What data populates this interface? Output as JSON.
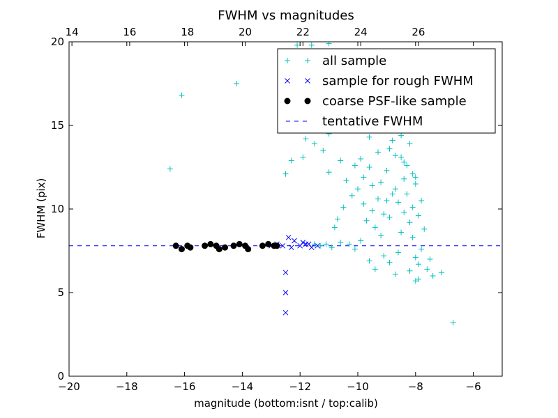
{
  "chart_data": {
    "type": "scatter",
    "title": "FWHM vs magnitudes",
    "xlabel": "magnitude (bottom:isnt / top:calib)",
    "ylabel": "FWHM (pix)",
    "xlim": [
      -20,
      -5
    ],
    "ylim": [
      0,
      20
    ],
    "x_ticks": [
      -20,
      -18,
      -16,
      -14,
      -12,
      -10,
      -8,
      -6
    ],
    "x_tick_labels": [
      "−20",
      "−18",
      "−16",
      "−14",
      "−12",
      "−10",
      "−8",
      "−6"
    ],
    "y_ticks": [
      0,
      5,
      10,
      15,
      20
    ],
    "y_tick_labels": [
      "0",
      "5",
      "10",
      "15",
      "20"
    ],
    "top_axis": {
      "ticks": [
        14,
        16,
        18,
        20,
        22,
        24,
        26
      ],
      "tick_labels": [
        "14",
        "16",
        "18",
        "20",
        "22",
        "24",
        "26"
      ],
      "offset_from_bottom": 33.9
    },
    "grid": false,
    "legend_position": "top-right",
    "tentative_fwhm": 7.8,
    "series": [
      {
        "name": "all sample",
        "marker": "plus",
        "color": "#00bfbf",
        "points": [
          [
            -16.5,
            12.4
          ],
          [
            -16.1,
            16.8
          ],
          [
            -14.2,
            17.5
          ],
          [
            -12.5,
            12.1
          ],
          [
            -12.3,
            12.9
          ],
          [
            -11.9,
            13.1
          ],
          [
            -11.8,
            14.2
          ],
          [
            -11.5,
            13.9
          ],
          [
            -11.4,
            14.8
          ],
          [
            -11.2,
            13.5
          ],
          [
            -11.0,
            12.2
          ],
          [
            -11.0,
            14.5
          ],
          [
            -12.1,
            19.8
          ],
          [
            -11.6,
            19.8
          ],
          [
            -11.0,
            19.9
          ],
          [
            -10.4,
            15.2
          ],
          [
            -6.7,
            3.2
          ],
          [
            -7.1,
            6.2
          ],
          [
            -7.4,
            6.0
          ],
          [
            -10.8,
            8.9
          ],
          [
            -10.7,
            9.4
          ],
          [
            -10.5,
            10.1
          ],
          [
            -10.2,
            10.8
          ],
          [
            -10.0,
            11.2
          ],
          [
            -9.8,
            11.9
          ],
          [
            -9.6,
            12.5
          ],
          [
            -9.5,
            11.4
          ],
          [
            -9.3,
            10.6
          ],
          [
            -9.1,
            9.7
          ],
          [
            -8.9,
            13.6
          ],
          [
            -8.8,
            14.1
          ],
          [
            -8.7,
            13.2
          ],
          [
            -8.6,
            15.0
          ],
          [
            -8.5,
            14.4
          ],
          [
            -8.4,
            12.8
          ],
          [
            -8.3,
            16.3
          ],
          [
            -8.2,
            13.9
          ],
          [
            -8.1,
            12.1
          ],
          [
            -8.0,
            11.5
          ],
          [
            -9.0,
            10.5
          ],
          [
            -9.2,
            8.4
          ],
          [
            -9.4,
            8.9
          ],
          [
            -9.7,
            9.3
          ],
          [
            -9.9,
            8.1
          ],
          [
            -10.3,
            7.9
          ],
          [
            -10.6,
            8.0
          ],
          [
            -11.1,
            7.9
          ],
          [
            -11.3,
            7.8
          ],
          [
            -11.5,
            7.9
          ],
          [
            -10.9,
            7.7
          ],
          [
            -10.1,
            7.6
          ],
          [
            -9.6,
            6.9
          ],
          [
            -9.4,
            6.4
          ],
          [
            -9.1,
            7.2
          ],
          [
            -8.9,
            6.8
          ],
          [
            -8.7,
            6.1
          ],
          [
            -8.6,
            7.4
          ],
          [
            -8.5,
            8.6
          ],
          [
            -8.4,
            9.8
          ],
          [
            -8.3,
            10.9
          ],
          [
            -8.2,
            9.2
          ],
          [
            -8.1,
            8.3
          ],
          [
            -8.0,
            7.1
          ],
          [
            -7.9,
            6.7
          ],
          [
            -7.8,
            7.6
          ],
          [
            -7.7,
            8.8
          ],
          [
            -7.6,
            6.4
          ],
          [
            -7.5,
            7.0
          ],
          [
            -7.9,
            5.8
          ],
          [
            -8.0,
            5.7
          ],
          [
            -8.2,
            6.3
          ],
          [
            -8.6,
            10.4
          ],
          [
            -8.8,
            10.9
          ],
          [
            -9.0,
            12.3
          ],
          [
            -9.2,
            11.6
          ],
          [
            -9.5,
            9.9
          ],
          [
            -9.8,
            10.3
          ],
          [
            -8.4,
            11.8
          ],
          [
            -8.3,
            12.6
          ],
          [
            -8.5,
            13.1
          ],
          [
            -8.7,
            11.2
          ],
          [
            -8.9,
            9.5
          ],
          [
            -8.1,
            10.1
          ],
          [
            -7.9,
            9.6
          ],
          [
            -7.8,
            10.5
          ],
          [
            -8.0,
            11.9
          ],
          [
            -8.2,
            14.8
          ],
          [
            -8.4,
            15.6
          ],
          [
            -9.3,
            13.4
          ],
          [
            -9.6,
            14.3
          ],
          [
            -9.9,
            13.0
          ],
          [
            -10.1,
            12.6
          ],
          [
            -10.4,
            11.7
          ],
          [
            -10.6,
            12.9
          ]
        ]
      },
      {
        "name": "sample for rough FWHM",
        "marker": "x",
        "color": "#0000ff",
        "points": [
          [
            -12.5,
            6.2
          ],
          [
            -12.5,
            5.0
          ],
          [
            -12.5,
            3.8
          ],
          [
            -12.4,
            8.3
          ],
          [
            -12.2,
            8.1
          ],
          [
            -12.0,
            7.8
          ],
          [
            -11.8,
            7.9
          ],
          [
            -11.6,
            7.7
          ],
          [
            -11.4,
            7.8
          ],
          [
            -11.9,
            8.0
          ],
          [
            -12.6,
            7.8
          ],
          [
            -12.8,
            7.9
          ],
          [
            -13.0,
            7.8
          ],
          [
            -12.3,
            7.7
          ],
          [
            -11.7,
            7.9
          ]
        ]
      },
      {
        "name": "coarse PSF-like sample",
        "marker": "circle",
        "color": "#000000",
        "points": [
          [
            -16.3,
            7.8
          ],
          [
            -16.1,
            7.6
          ],
          [
            -15.9,
            7.8
          ],
          [
            -15.8,
            7.7
          ],
          [
            -15.3,
            7.8
          ],
          [
            -15.1,
            7.9
          ],
          [
            -14.9,
            7.8
          ],
          [
            -14.8,
            7.6
          ],
          [
            -14.6,
            7.7
          ],
          [
            -14.3,
            7.8
          ],
          [
            -14.1,
            7.9
          ],
          [
            -13.9,
            7.8
          ],
          [
            -13.8,
            7.6
          ],
          [
            -13.3,
            7.8
          ],
          [
            -13.1,
            7.9
          ],
          [
            -12.9,
            7.8
          ],
          [
            -12.8,
            7.8
          ]
        ]
      },
      {
        "name": "tentative FWHM",
        "marker": "dashed-line",
        "color": "#0000ff"
      }
    ]
  }
}
